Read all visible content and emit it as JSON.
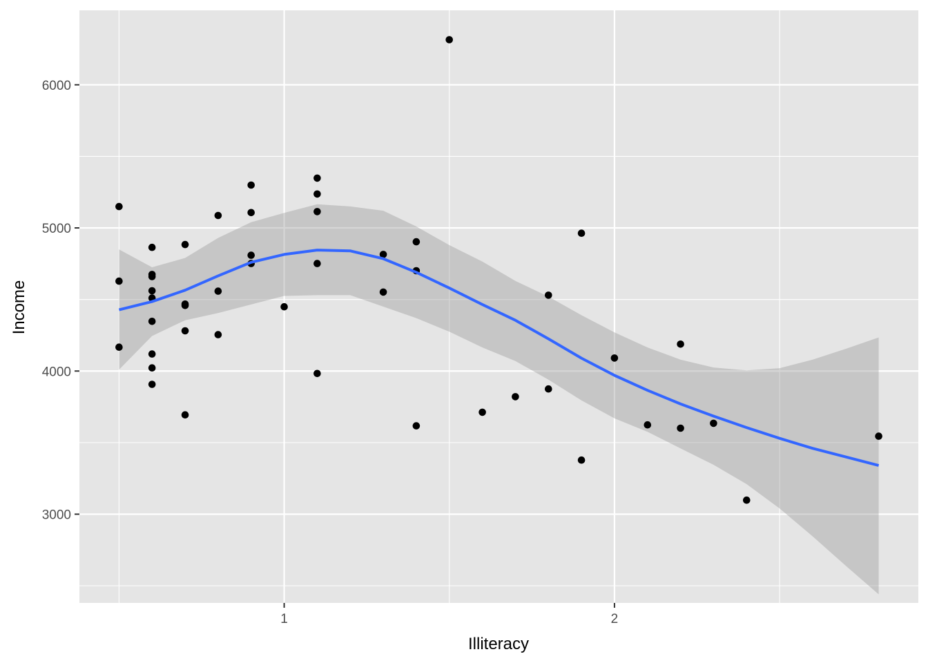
{
  "chart_data": {
    "type": "scatter",
    "xlabel": "Illiteracy",
    "ylabel": "Income",
    "xlim": [
      0.38,
      2.92
    ],
    "ylim": [
      2380,
      6520
    ],
    "x_ticks": [
      1,
      2
    ],
    "x_tick_labels": [
      "1",
      "2"
    ],
    "x_minor_ticks": [
      0.5,
      1.5,
      2.5
    ],
    "y_ticks": [
      3000,
      4000,
      5000,
      6000
    ],
    "y_tick_labels": [
      "3000",
      "4000",
      "5000",
      "6000"
    ],
    "y_minor_ticks": [
      2500,
      3500,
      4500,
      5500
    ],
    "grid": true,
    "colors": {
      "panel_background": "#e5e5e5",
      "grid": "#ffffff",
      "points": "#000000",
      "smooth_line": "#3366ff",
      "confidence_band": "#999999"
    },
    "points": [
      [
        0.5,
        5149
      ],
      [
        0.5,
        4628
      ],
      [
        0.5,
        4167
      ],
      [
        0.6,
        4864
      ],
      [
        0.6,
        4675
      ],
      [
        0.6,
        4660
      ],
      [
        0.6,
        4561
      ],
      [
        0.6,
        4510
      ],
      [
        0.6,
        4347
      ],
      [
        0.6,
        4119
      ],
      [
        0.6,
        4022
      ],
      [
        0.6,
        3907
      ],
      [
        0.7,
        4884
      ],
      [
        0.7,
        4468
      ],
      [
        0.7,
        4458
      ],
      [
        0.7,
        4281
      ],
      [
        0.7,
        3694
      ],
      [
        0.8,
        5087
      ],
      [
        0.8,
        4558
      ],
      [
        0.8,
        4254
      ],
      [
        0.9,
        5299
      ],
      [
        0.9,
        5107
      ],
      [
        0.9,
        4809
      ],
      [
        0.9,
        4751
      ],
      [
        1.0,
        4449
      ],
      [
        1.1,
        5348
      ],
      [
        1.1,
        5237
      ],
      [
        1.1,
        5114
      ],
      [
        1.1,
        4751
      ],
      [
        1.1,
        3983
      ],
      [
        1.3,
        4815
      ],
      [
        1.3,
        4552
      ],
      [
        1.4,
        4903
      ],
      [
        1.4,
        4701
      ],
      [
        1.4,
        3617
      ],
      [
        1.5,
        6315
      ],
      [
        1.6,
        3712
      ],
      [
        1.7,
        3821
      ],
      [
        1.8,
        4530
      ],
      [
        1.8,
        3875
      ],
      [
        1.9,
        4963
      ],
      [
        1.9,
        3378
      ],
      [
        2.0,
        4091
      ],
      [
        2.1,
        3624
      ],
      [
        2.2,
        4188
      ],
      [
        2.2,
        3601
      ],
      [
        2.3,
        3635
      ],
      [
        2.4,
        3098
      ],
      [
        2.8,
        3545
      ]
    ],
    "smooth": {
      "method": "loess",
      "x": [
        0.5,
        0.6,
        0.7,
        0.8,
        0.9,
        1.0,
        1.1,
        1.2,
        1.3,
        1.4,
        1.5,
        1.6,
        1.7,
        1.8,
        1.9,
        2.0,
        2.1,
        2.2,
        2.3,
        2.4,
        2.5,
        2.6,
        2.7,
        2.8
      ],
      "y": [
        4428,
        4485,
        4565,
        4665,
        4760,
        4815,
        4845,
        4840,
        4785,
        4690,
        4580,
        4465,
        4355,
        4225,
        4090,
        3970,
        3865,
        3770,
        3685,
        3605,
        3530,
        3460,
        3400,
        3340
      ],
      "upper": [
        4850,
        4725,
        4790,
        4930,
        5040,
        5105,
        5165,
        5150,
        5120,
        5010,
        4880,
        4765,
        4630,
        4520,
        4390,
        4270,
        4165,
        4080,
        4025,
        4005,
        4020,
        4080,
        4155,
        4235
      ],
      "lower": [
        4010,
        4245,
        4355,
        4405,
        4465,
        4525,
        4530,
        4530,
        4450,
        4370,
        4275,
        4165,
        4070,
        3940,
        3795,
        3670,
        3575,
        3460,
        3345,
        3210,
        3040,
        2845,
        2640,
        2440
      ]
    }
  }
}
